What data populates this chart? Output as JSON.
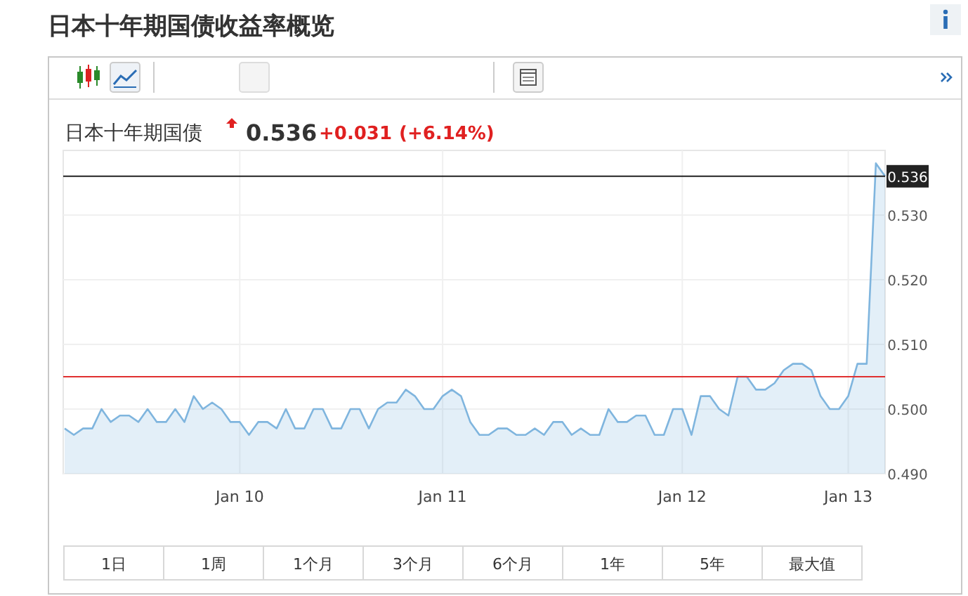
{
  "chart_data": {
    "type": "area",
    "title": "日本十年期国债收益率概览",
    "annotations": [
      "日本十年期国债",
      "0.536",
      "+0.031",
      "(+6.14%)",
      "1日",
      "1周",
      "1个月",
      "3个月",
      "6个月",
      "1年",
      "5年",
      "最大值"
    ],
    "categories": [
      null,
      null,
      null,
      null,
      null,
      null,
      null,
      null,
      null,
      null,
      null,
      null,
      null,
      null,
      null,
      null,
      null,
      null,
      null,
      "Jan 10",
      null,
      null,
      null,
      null,
      null,
      null,
      null,
      null,
      null,
      null,
      null,
      null,
      null,
      null,
      null,
      null,
      null,
      null,
      null,
      null,
      null,
      "Jan 11",
      null,
      null,
      null,
      null,
      null,
      null,
      null,
      null,
      null,
      null,
      null,
      null,
      null,
      null,
      null,
      null,
      null,
      null,
      null,
      null,
      null,
      null,
      null,
      null,
      null,
      "Jan 12",
      null,
      null,
      null,
      null,
      null,
      null,
      null,
      null,
      null,
      null,
      null,
      null,
      null,
      null,
      null,
      null,
      null,
      "Jan 13",
      null,
      null,
      null,
      null
    ],
    "series": [
      {
        "color": "#7fb5de",
        "values": [
          0.497,
          0.496,
          0.497,
          0.497,
          0.5,
          0.498,
          0.499,
          0.499,
          0.498,
          0.5,
          0.498,
          0.498,
          0.5,
          0.498,
          0.502,
          0.5,
          0.501,
          0.5,
          0.498,
          0.498,
          0.496,
          0.498,
          0.498,
          0.497,
          0.5,
          0.497,
          0.497,
          0.5,
          0.5,
          0.497,
          0.497,
          0.5,
          0.5,
          0.497,
          0.5,
          0.501,
          0.501,
          0.503,
          0.502,
          0.5,
          0.5,
          0.502,
          0.503,
          0.502,
          0.498,
          0.496,
          0.496,
          0.497,
          0.497,
          0.496,
          0.496,
          0.497,
          0.496,
          0.498,
          0.498,
          0.496,
          0.497,
          0.496,
          0.496,
          0.5,
          0.498,
          0.498,
          0.499,
          0.499,
          0.496,
          0.496,
          0.5,
          0.5,
          0.496,
          0.502,
          0.502,
          0.5,
          0.499,
          0.505,
          0.505,
          0.503,
          0.503,
          0.504,
          0.506,
          0.507,
          0.507,
          0.506,
          0.502,
          0.5,
          0.5,
          0.502,
          0.507,
          0.507,
          0.538,
          0.536
        ]
      }
    ],
    "ylim": [
      0.49,
      0.54
    ],
    "yticks": [
      {
        "value": 0.49,
        "label": "0.490"
      },
      {
        "value": 0.5,
        "label": "0.500"
      },
      {
        "value": 0.51,
        "label": "0.510"
      },
      {
        "value": 0.52,
        "label": "0.520"
      },
      {
        "value": 0.53,
        "label": "0.530"
      }
    ],
    "ref_lines": [
      {
        "axis": "y",
        "value": 0.536,
        "label": "0.536",
        "color": "#222222"
      },
      {
        "axis": "y",
        "value": 0.505,
        "color": "#e03030"
      }
    ],
    "grid": true
  }
}
